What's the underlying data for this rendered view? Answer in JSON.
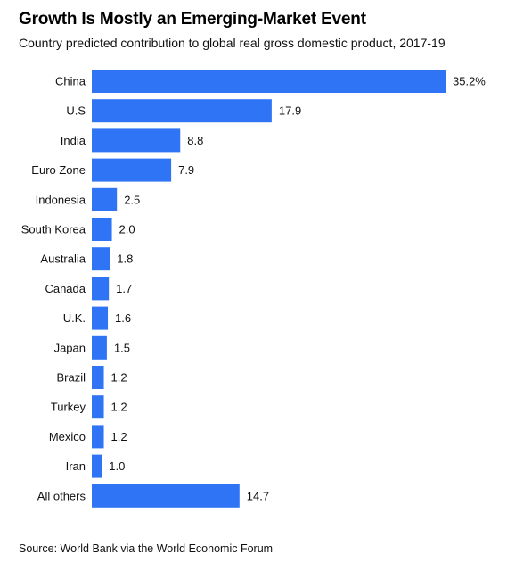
{
  "chart_data": {
    "type": "bar",
    "orientation": "horizontal",
    "title": "Growth Is Mostly an Emerging-Market Event",
    "subtitle": "Country predicted contribution to global real gross domestic product, 2017-19",
    "source": "Source: World Bank via the World Economic Forum",
    "categories": [
      "China",
      "U.S",
      "India",
      "Euro Zone",
      "Indonesia",
      "South Korea",
      "Australia",
      "Canada",
      "U.K.",
      "Japan",
      "Brazil",
      "Turkey",
      "Mexico",
      "Iran",
      "All others"
    ],
    "values": [
      35.2,
      17.9,
      8.8,
      7.9,
      2.5,
      2.0,
      1.8,
      1.7,
      1.6,
      1.5,
      1.2,
      1.2,
      1.2,
      1.0,
      14.7
    ],
    "value_labels": [
      "35.2%",
      "17.9",
      "8.8",
      "7.9",
      "2.5",
      "2.0",
      "1.8",
      "1.7",
      "1.6",
      "1.5",
      "1.2",
      "1.2",
      "1.2",
      "1.0",
      "14.7"
    ],
    "bar_color": "#2f74f5",
    "grid": false,
    "legend": "none"
  }
}
